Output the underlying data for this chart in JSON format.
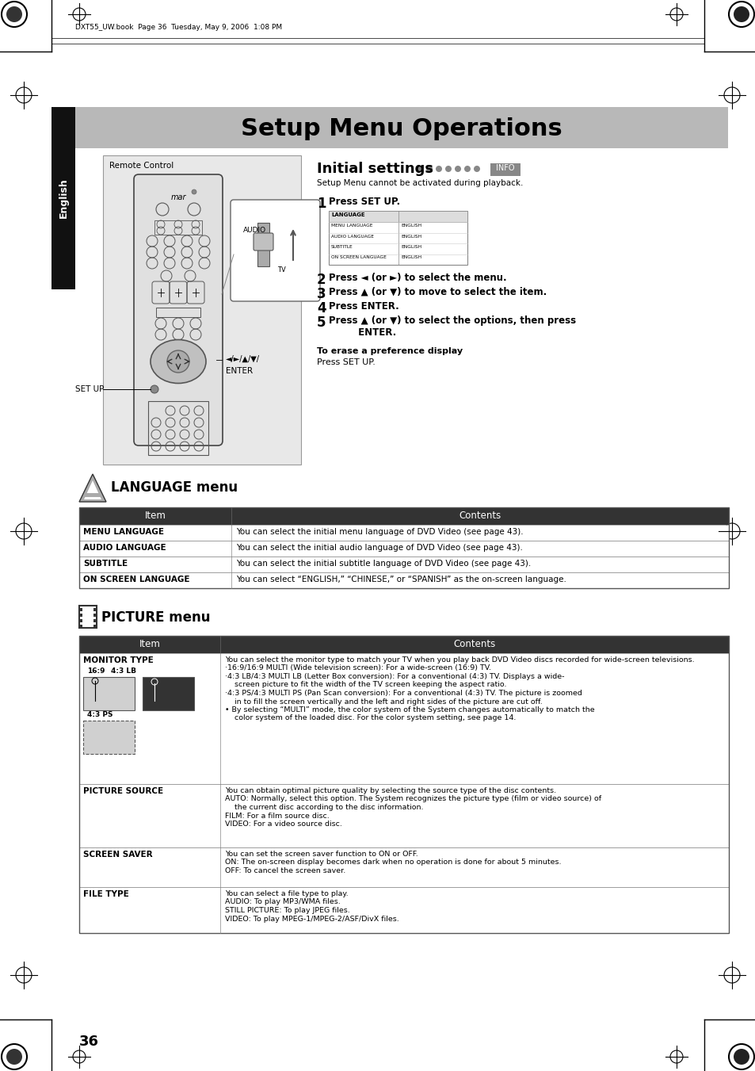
{
  "title": "Setup Menu Operations",
  "title_bg": "#b8b8b8",
  "page_bg": "#ffffff",
  "header_text": "DXT55_UW.book  Page 36  Tuesday, May 9, 2006  1:08 PM",
  "sidebar_text": "English",
  "sidebar_bg": "#111111",
  "page_number": "36",
  "initial_settings_title": "Initial settings",
  "initial_settings_sub": "Setup Menu cannot be activated during playback.",
  "step1": "Press SET UP.",
  "step2": "Press ◄ (or ►) to select the menu.",
  "step3": "Press ▲ (or ▼) to move to select the item.",
  "step4": "Press ENTER.",
  "step5": "Press ▲ (or ▼) to select the options, then press\n         ENTER.",
  "erase_title": "To erase a preference display",
  "erase_text": "Press SET UP.",
  "language_menu_title": "LANGUAGE menu",
  "language_table_rows": [
    [
      "MENU LANGUAGE",
      "You can select the initial menu language of DVD Video (see page 43)."
    ],
    [
      "AUDIO LANGUAGE",
      "You can select the initial audio language of DVD Video (see page 43)."
    ],
    [
      "SUBTITLE",
      "You can select the initial subtitle language of DVD Video (see page 43)."
    ],
    [
      "ON SCREEN LANGUAGE",
      "You can select “ENGLISH,” “CHINESE,” or “SPANISH” as the on-screen language."
    ]
  ],
  "picture_menu_title": "PICTURE menu",
  "monitor_type_content_lines": [
    "You can select the monitor type to match your TV when you play back DVD Video discs recorded for wide-screen televisions.",
    "·16:9/16:9 MULTI (Wide television screen): For a wide-screen (16:9) TV.",
    "·4:3 LB/4:3 MULTI LB (Letter Box conversion): For a conventional (4:3) TV. Displays a wide-",
    "    screen picture to fit the width of the TV screen keeping the aspect ratio.",
    "·4:3 PS/4:3 MULTI PS (Pan Scan conversion): For a conventional (4:3) TV. The picture is zoomed",
    "    in to fill the screen vertically and the left and right sides of the picture are cut off.",
    "• By selecting “MULTI” mode, the color system of the System changes automatically to match the",
    "    color system of the loaded disc. For the color system setting, see page 14."
  ],
  "picture_source_content_lines": [
    "You can obtain optimal picture quality by selecting the source type of the disc contents.",
    "AUTO: Normally, select this option. The System recognizes the picture type (film or video source) of",
    "    the current disc according to the disc information.",
    "FILM: For a film source disc.",
    "VIDEO: For a video source disc."
  ],
  "screen_saver_content_lines": [
    "You can set the screen saver function to ON or OFF.",
    "ON: The on-screen display becomes dark when no operation is done for about 5 minutes.",
    "OFF: To cancel the screen saver."
  ],
  "file_type_content_lines": [
    "You can select a file type to play.",
    "AUDIO: To play MP3/WMA files.",
    "STILL PICTURE: To play JPEG files.",
    "VIDEO: To play MPEG-1/MPEG-2/ASF/DivX files."
  ],
  "table_header_bg": "#333333",
  "table_header_fg": "#ffffff",
  "table_border": "#888888",
  "remote_control_label": "Remote Control",
  "enter_label": "ENTER",
  "setup_label": "SET UP",
  "nav_label": "◄/►/▲/▼/",
  "lang_screen_rows": [
    [
      "LANGUAGE",
      ""
    ],
    [
      "MENU LANGUAGE",
      "ENGLISH"
    ],
    [
      "AUDIO LANGUAGE",
      "ENGLISH"
    ],
    [
      "SUBTITLE",
      "ENGLISH"
    ],
    [
      "ON SCREEN LANGUAGE",
      "ENGLISH"
    ]
  ]
}
